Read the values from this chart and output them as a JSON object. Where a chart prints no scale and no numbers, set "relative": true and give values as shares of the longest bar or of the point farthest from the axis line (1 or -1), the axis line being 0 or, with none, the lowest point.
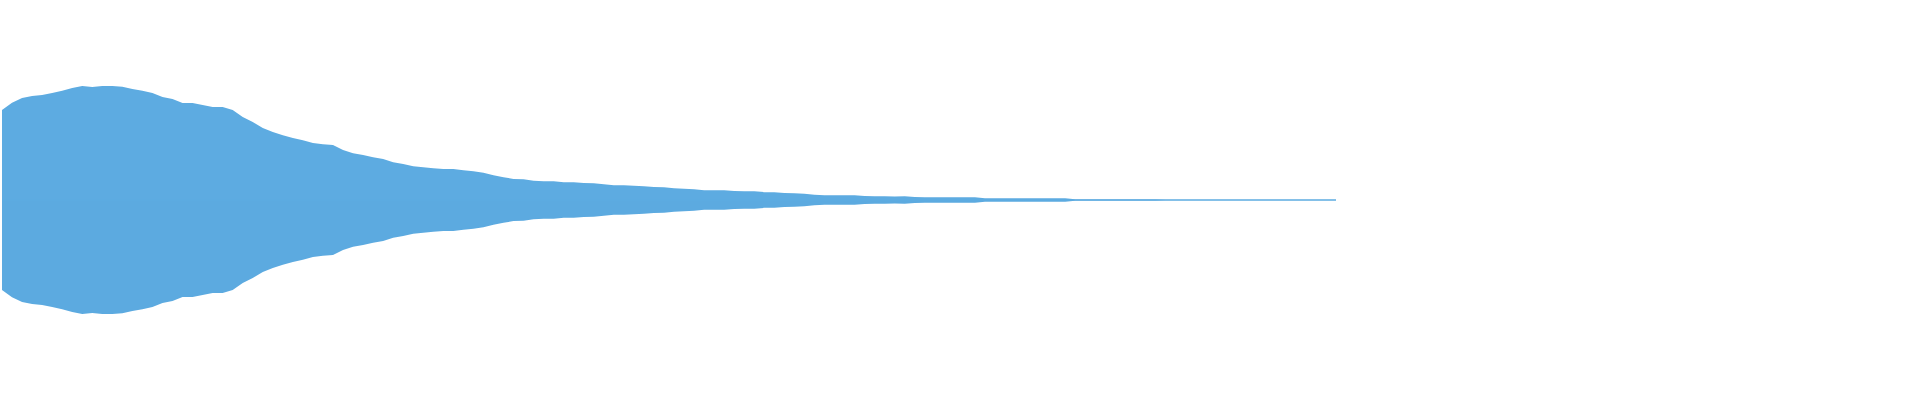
{
  "chart_data": {
    "type": "area",
    "relative": true,
    "categories": [
      null,
      null,
      null,
      null,
      null,
      null,
      null,
      null,
      null,
      null,
      null,
      null,
      null,
      null,
      null,
      null,
      null,
      null,
      null,
      null,
      null,
      null,
      null,
      null,
      null,
      null,
      null,
      null,
      null,
      null,
      null,
      null,
      null,
      null,
      null,
      null,
      null,
      null,
      null,
      null,
      null,
      null,
      null,
      null,
      null,
      null,
      null,
      null,
      null,
      null,
      null,
      null,
      null,
      null,
      null,
      null,
      null,
      null,
      null,
      null,
      null,
      null,
      null,
      null,
      null,
      null,
      null,
      null,
      null,
      null,
      null,
      null,
      null,
      null,
      null,
      null,
      null,
      null,
      null,
      null,
      null,
      null,
      null,
      null,
      null,
      null,
      null,
      null,
      null,
      null,
      null,
      null,
      null,
      null,
      null,
      null,
      null,
      null,
      null,
      null,
      null,
      null,
      null,
      null,
      null,
      null,
      null,
      null,
      null,
      null,
      null,
      null,
      null,
      null,
      null,
      null,
      null,
      null,
      null,
      null,
      null,
      null,
      null,
      null,
      null,
      null,
      null,
      null,
      null,
      null,
      null,
      null,
      null,
      null
    ],
    "ref_lines": [
      {
        "axis": "y",
        "value": 0,
        "color": "#5dabe1"
      }
    ],
    "series": [
      {
        "color": "#5dabe1",
        "values": [
          0.789,
          0.853,
          0.895,
          0.912,
          0.921,
          0.938,
          0.959,
          0.982,
          1,
          0.991,
          1,
          1,
          0.994,
          0.974,
          0.959,
          0.938,
          0.903,
          0.886,
          0.851,
          0.851,
          0.833,
          0.815,
          0.815,
          0.789,
          0.728,
          0.684,
          0.631,
          0.596,
          0.569,
          0.543,
          0.525,
          0.499,
          0.49,
          0.482,
          0.438,
          0.411,
          0.394,
          0.376,
          0.359,
          0.332,
          0.315,
          0.297,
          0.288,
          0.279,
          0.271,
          0.271,
          0.262,
          0.253,
          0.238,
          0.218,
          0.2,
          0.185,
          0.183,
          0.168,
          0.165,
          0.165,
          0.156,
          0.156,
          0.15,
          0.148,
          0.139,
          0.13,
          0.13,
          0.124,
          0.121,
          0.115,
          0.112,
          0.104,
          0.098,
          0.095,
          0.086,
          0.086,
          0.086,
          0.08,
          0.077,
          0.077,
          0.069,
          0.069,
          0.062,
          0.06,
          0.054,
          0.045,
          0.042,
          0.042,
          0.042,
          0.042,
          0.036,
          0.033,
          0.033,
          0.031,
          0.033,
          0.027,
          0.025,
          0.025,
          0.025,
          0.025,
          0.025,
          0.025,
          0.016,
          0.016,
          0.016,
          0.016,
          0.016,
          0.016,
          0.016,
          0.016,
          0.016,
          0.007,
          0.007,
          0.007,
          0.007,
          0.007,
          0.007,
          0.007,
          0.007,
          0.007,
          0.005,
          0.005,
          0.005,
          0.005,
          0.005,
          0.005,
          0.005,
          0.005,
          0.005,
          0.005,
          0.005,
          0.005,
          0.005,
          0.005,
          0.005,
          0.005,
          0.005,
          0.005
        ]
      },
      {
        "color": "#5caae0",
        "values": [
          -0.789,
          -0.853,
          -0.895,
          -0.912,
          -0.921,
          -0.938,
          -0.959,
          -0.982,
          -1,
          -0.991,
          -1,
          -1,
          -0.994,
          -0.974,
          -0.959,
          -0.938,
          -0.903,
          -0.886,
          -0.851,
          -0.851,
          -0.833,
          -0.815,
          -0.815,
          -0.789,
          -0.728,
          -0.684,
          -0.631,
          -0.596,
          -0.569,
          -0.543,
          -0.525,
          -0.499,
          -0.49,
          -0.482,
          -0.438,
          -0.411,
          -0.394,
          -0.376,
          -0.359,
          -0.332,
          -0.315,
          -0.297,
          -0.288,
          -0.279,
          -0.271,
          -0.271,
          -0.262,
          -0.253,
          -0.238,
          -0.218,
          -0.2,
          -0.185,
          -0.183,
          -0.168,
          -0.165,
          -0.165,
          -0.156,
          -0.156,
          -0.15,
          -0.148,
          -0.139,
          -0.13,
          -0.13,
          -0.124,
          -0.121,
          -0.115,
          -0.112,
          -0.104,
          -0.098,
          -0.095,
          -0.086,
          -0.086,
          -0.086,
          -0.08,
          -0.077,
          -0.077,
          -0.069,
          -0.069,
          -0.062,
          -0.06,
          -0.054,
          -0.045,
          -0.042,
          -0.042,
          -0.042,
          -0.042,
          -0.036,
          -0.033,
          -0.033,
          -0.031,
          -0.033,
          -0.027,
          -0.025,
          -0.025,
          -0.025,
          -0.025,
          -0.025,
          -0.025,
          -0.016,
          -0.016,
          -0.016,
          -0.016,
          -0.016,
          -0.016,
          -0.016,
          -0.016,
          -0.016,
          -0.007,
          -0.007,
          -0.007,
          -0.007,
          -0.007,
          -0.007,
          -0.007,
          -0.007,
          -0.007,
          -0.005,
          -0.005,
          -0.005,
          -0.005,
          -0.005,
          -0.005,
          -0.005,
          -0.005,
          -0.005,
          -0.005,
          -0.005,
          -0.005,
          -0.005,
          -0.005,
          -0.005,
          -0.005,
          -0.005,
          -0.005
        ]
      }
    ]
  }
}
